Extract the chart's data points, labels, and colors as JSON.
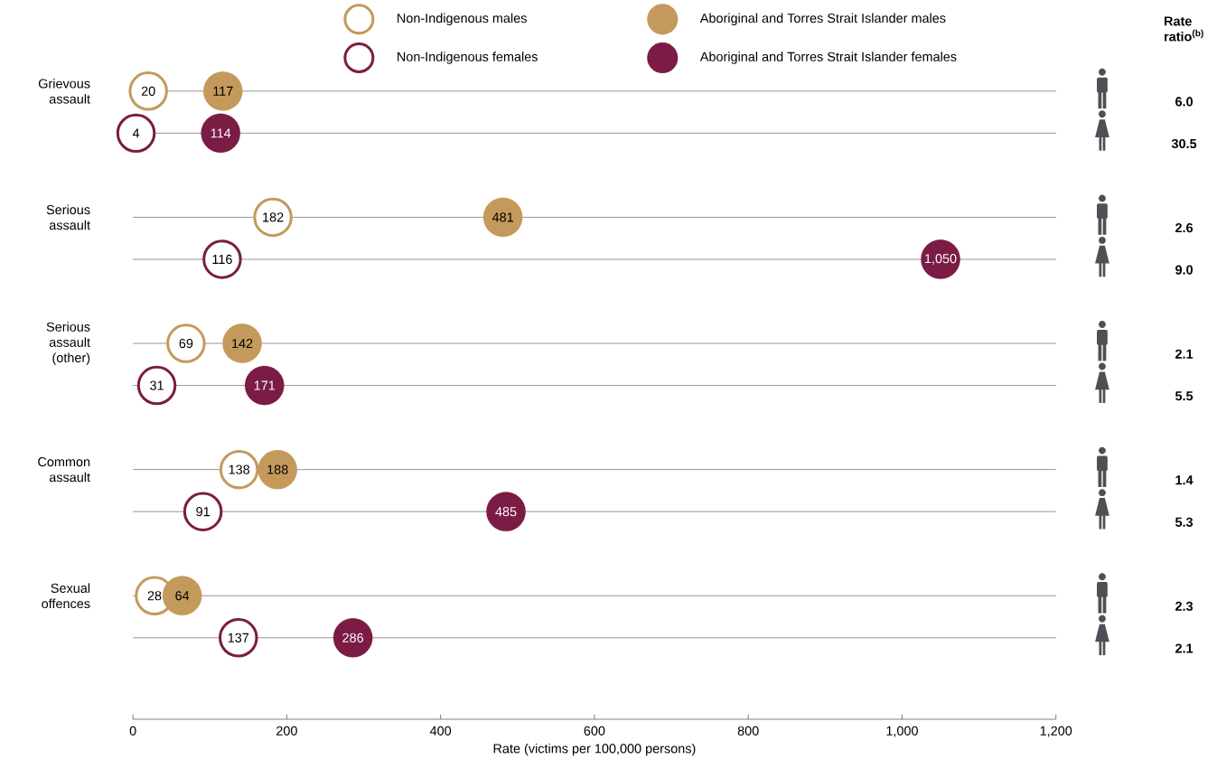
{
  "chart_data": {
    "type": "scatter",
    "orientation": "horizontal",
    "xlabel": "Rate (victims per 100,000 persons)",
    "categories": [
      "Grievous assault",
      null,
      null,
      "Serious assault",
      null,
      null,
      "Serious assault (other)",
      null,
      null,
      "Common assault",
      null,
      null,
      "Sexual offences",
      null
    ],
    "xlim": [
      0,
      1200
    ],
    "xticks": [
      0,
      200,
      400,
      600,
      800,
      {
        "value": 1000,
        "label": "1,000"
      },
      {
        "value": 1200,
        "label": "1,200"
      }
    ],
    "legend": "top",
    "marker": "circle",
    "series": [
      {
        "name": "Non-Indigenous males",
        "color": "#c49a5c",
        "values": [
          20,
          null,
          null,
          182,
          null,
          null,
          69,
          null,
          null,
          138,
          null,
          null,
          28,
          null
        ],
        "value_labels": [
          "20",
          null,
          null,
          "182",
          null,
          null,
          "69",
          null,
          null,
          "138",
          null,
          null,
          "28",
          null
        ]
      },
      {
        "name": "Non-Indigenous females",
        "color": "#7b1c45",
        "values": [
          null,
          4,
          null,
          null,
          116,
          null,
          null,
          31,
          null,
          null,
          91,
          null,
          null,
          137
        ],
        "value_labels": [
          null,
          "4",
          null,
          null,
          "116",
          null,
          null,
          "31",
          null,
          null,
          "91",
          null,
          null,
          "137"
        ]
      },
      {
        "name": "Aboriginal and Torres Strait Islander males",
        "color": "#c49a5c",
        "values": [
          117,
          null,
          null,
          481,
          null,
          null,
          142,
          null,
          null,
          188,
          null,
          null,
          64,
          null
        ],
        "value_labels": [
          "117",
          null,
          null,
          "481",
          null,
          null,
          "142",
          null,
          null,
          "188",
          null,
          null,
          "64",
          null
        ]
      },
      {
        "name": "Aboriginal and Torres Strait Islander females",
        "color": "#7b1c45",
        "values": [
          null,
          114,
          null,
          null,
          1050,
          null,
          null,
          171,
          null,
          null,
          485,
          null,
          null,
          286
        ],
        "value_labels": [
          null,
          "114",
          null,
          null,
          "1,050",
          null,
          null,
          "171",
          null,
          null,
          "485",
          null,
          null,
          "286"
        ]
      }
    ],
    "annotations": [
      "Rate ratio$^{(b)}$",
      "6.0",
      "30.5",
      "2.6",
      "9.0",
      "2.1",
      "5.5",
      "1.4",
      "5.3",
      "2.3",
      "2.1"
    ]
  }
}
